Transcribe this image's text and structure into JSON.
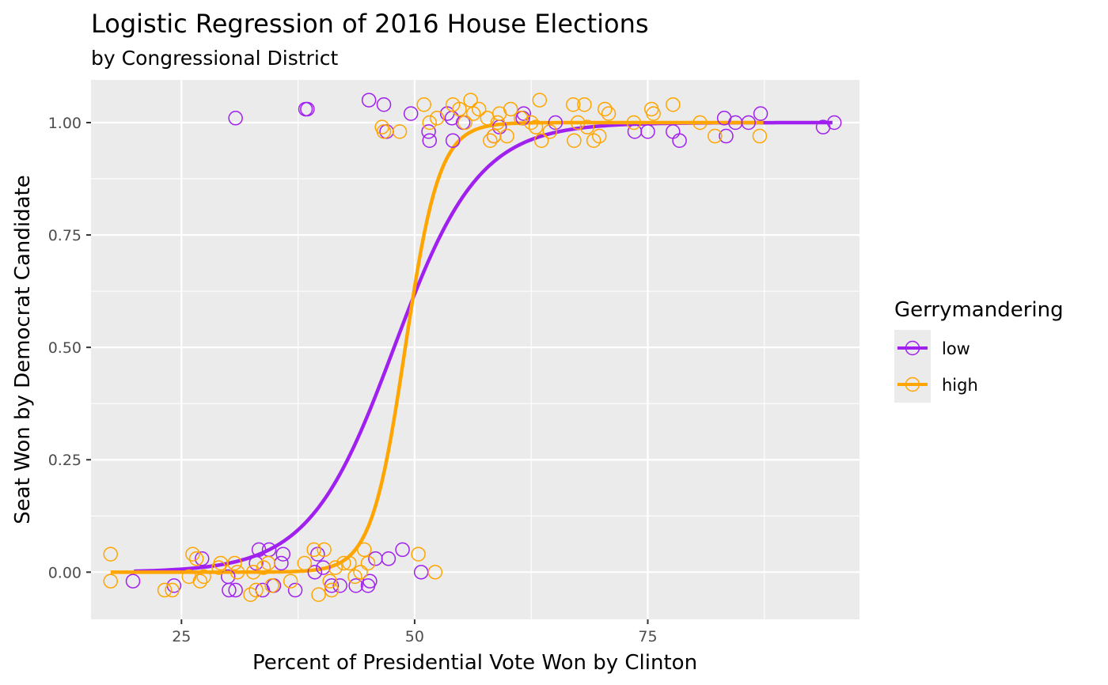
{
  "chart_data": {
    "type": "scatter",
    "title": "Logistic Regression of 2016 House Elections",
    "subtitle": "by Congressional District",
    "xlabel": "Percent of Presidential Vote Won by Clinton",
    "ylabel": "Seat Won by Democrat Candidate",
    "xlim": [
      15.3,
      97.7
    ],
    "ylim": [
      -0.105,
      1.095
    ],
    "x_ticks": [
      25,
      50,
      75
    ],
    "x_tick_labels": [
      "25",
      "50",
      "75"
    ],
    "y_ticks": [
      0,
      0.25,
      0.5,
      0.75,
      1.0
    ],
    "y_tick_labels": [
      "0.00",
      "0.25",
      "0.50",
      "0.75",
      "1.00"
    ],
    "grid": true,
    "legend": {
      "title": "Gerrymandering",
      "position": "right",
      "entries": [
        "low",
        "high"
      ]
    },
    "series": [
      {
        "name": "low",
        "color": "#a020f0",
        "curve": {
          "x_min": 19.9,
          "x_max": 94.8,
          "midpoint": 47.8,
          "slope": 0.22
        },
        "points": [
          [
            30.8,
            1.01
          ],
          [
            38.3,
            1.03
          ],
          [
            38.5,
            1.03
          ],
          [
            45.1,
            1.05
          ],
          [
            46.7,
            1.04
          ],
          [
            47.0,
            0.98
          ],
          [
            49.6,
            1.02
          ],
          [
            51.5,
            0.98
          ],
          [
            51.6,
            0.96
          ],
          [
            53.5,
            1.02
          ],
          [
            54.0,
            1.01
          ],
          [
            54.1,
            0.96
          ],
          [
            55.2,
            1.0
          ],
          [
            58.5,
            0.97
          ],
          [
            59.1,
            0.99
          ],
          [
            61.6,
            1.01
          ],
          [
            61.7,
            1.02
          ],
          [
            65.1,
            1.0
          ],
          [
            73.6,
            0.98
          ],
          [
            75.0,
            0.98
          ],
          [
            77.7,
            0.98
          ],
          [
            78.4,
            0.96
          ],
          [
            83.2,
            1.01
          ],
          [
            83.4,
            0.97
          ],
          [
            84.4,
            1.0
          ],
          [
            85.8,
            1.0
          ],
          [
            87.1,
            1.02
          ],
          [
            93.8,
            0.99
          ],
          [
            95.0,
            1.0
          ],
          [
            19.8,
            -0.02
          ],
          [
            24.2,
            -0.03
          ],
          [
            27.2,
            0.03
          ],
          [
            30.0,
            -0.01
          ],
          [
            30.1,
            -0.04
          ],
          [
            30.8,
            -0.04
          ],
          [
            33.0,
            0.02
          ],
          [
            33.3,
            0.05
          ],
          [
            33.7,
            -0.04
          ],
          [
            34.4,
            0.05
          ],
          [
            34.9,
            -0.03
          ],
          [
            35.7,
            0.02
          ],
          [
            35.9,
            0.04
          ],
          [
            37.2,
            -0.04
          ],
          [
            39.3,
            0.0
          ],
          [
            39.6,
            0.04
          ],
          [
            40.2,
            0.01
          ],
          [
            41.1,
            -0.03
          ],
          [
            42.0,
            -0.03
          ],
          [
            43.7,
            -0.03
          ],
          [
            45.0,
            -0.03
          ],
          [
            45.2,
            -0.02
          ],
          [
            45.8,
            0.03
          ],
          [
            47.2,
            0.03
          ],
          [
            48.7,
            0.05
          ],
          [
            50.7,
            0.0
          ]
        ]
      },
      {
        "name": "high",
        "color": "#ffa500",
        "curve": {
          "x_min": 17.4,
          "x_max": 87.4,
          "midpoint": 49.0,
          "slope": 0.55
        },
        "points": [
          [
            17.4,
            0.04
          ],
          [
            17.4,
            -0.02
          ],
          [
            23.2,
            -0.04
          ],
          [
            24.0,
            -0.04
          ],
          [
            25.8,
            -0.01
          ],
          [
            26.2,
            0.04
          ],
          [
            26.6,
            0.03
          ],
          [
            27.0,
            -0.02
          ],
          [
            27.4,
            -0.01
          ],
          [
            29.0,
            0.01
          ],
          [
            29.2,
            0.02
          ],
          [
            30.7,
            0.02
          ],
          [
            31.0,
            0.0
          ],
          [
            32.4,
            -0.05
          ],
          [
            32.7,
            0.0
          ],
          [
            33.0,
            -0.04
          ],
          [
            33.8,
            0.01
          ],
          [
            34.3,
            0.02
          ],
          [
            34.7,
            -0.03
          ],
          [
            36.7,
            -0.02
          ],
          [
            38.2,
            0.02
          ],
          [
            39.2,
            0.05
          ],
          [
            39.7,
            -0.05
          ],
          [
            40.3,
            0.05
          ],
          [
            40.9,
            -0.02
          ],
          [
            41.1,
            -0.04
          ],
          [
            41.5,
            0.01
          ],
          [
            42.4,
            0.02
          ],
          [
            43.0,
            0.02
          ],
          [
            43.6,
            -0.01
          ],
          [
            44.2,
            0.0
          ],
          [
            44.6,
            0.05
          ],
          [
            45.0,
            0.02
          ],
          [
            50.4,
            0.04
          ],
          [
            52.2,
            0.0
          ],
          [
            46.5,
            0.99
          ],
          [
            46.7,
            0.98
          ],
          [
            48.4,
            0.98
          ],
          [
            51.0,
            1.04
          ],
          [
            51.6,
            1.0
          ],
          [
            52.4,
            1.01
          ],
          [
            54.1,
            1.04
          ],
          [
            54.8,
            1.03
          ],
          [
            55.4,
            1.0
          ],
          [
            56.0,
            1.05
          ],
          [
            56.3,
            1.02
          ],
          [
            56.9,
            1.03
          ],
          [
            57.8,
            1.01
          ],
          [
            58.1,
            0.96
          ],
          [
            58.5,
            0.97
          ],
          [
            58.9,
            1.0
          ],
          [
            59.1,
            1.02
          ],
          [
            59.9,
            0.97
          ],
          [
            60.3,
            1.03
          ],
          [
            61.4,
            1.01
          ],
          [
            62.5,
            1.0
          ],
          [
            63.0,
            0.99
          ],
          [
            63.4,
            1.05
          ],
          [
            63.6,
            0.96
          ],
          [
            64.5,
            0.98
          ],
          [
            67.0,
            1.04
          ],
          [
            67.1,
            0.96
          ],
          [
            67.5,
            1.0
          ],
          [
            68.2,
            1.04
          ],
          [
            68.5,
            0.99
          ],
          [
            69.2,
            0.96
          ],
          [
            69.8,
            0.97
          ],
          [
            70.4,
            1.03
          ],
          [
            70.8,
            1.02
          ],
          [
            73.5,
            1.0
          ],
          [
            75.4,
            1.03
          ],
          [
            75.6,
            1.02
          ],
          [
            77.7,
            1.04
          ],
          [
            80.6,
            1.0
          ],
          [
            82.2,
            0.97
          ],
          [
            87.0,
            0.97
          ]
        ]
      }
    ]
  }
}
